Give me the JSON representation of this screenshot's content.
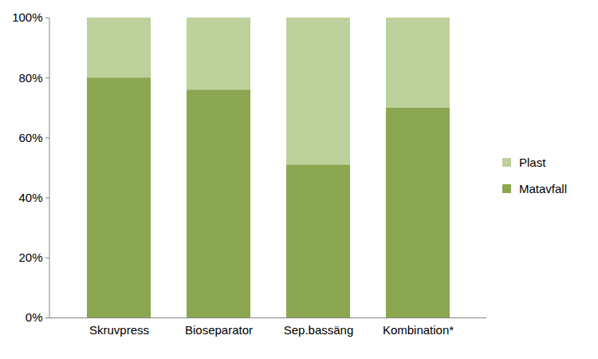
{
  "chart_data": {
    "type": "bar",
    "stacked": true,
    "categories": [
      "Skruvpress",
      "Bioseparator",
      "Sep.bassäng",
      "Kombination*"
    ],
    "series": [
      {
        "name": "Matavfall",
        "color": "#8aa650",
        "values": [
          80,
          76,
          51,
          70
        ]
      },
      {
        "name": "Plast",
        "color": "#bdd19c",
        "values": [
          20,
          24,
          49,
          30
        ]
      }
    ],
    "ylim": [
      0,
      100
    ],
    "yticks": [
      {
        "value": 0,
        "label": "0%"
      },
      {
        "value": 20,
        "label": "20%"
      },
      {
        "value": 40,
        "label": "40%"
      },
      {
        "value": 60,
        "label": "60%"
      },
      {
        "value": 80,
        "label": "80%"
      },
      {
        "value": 100,
        "label": "100%"
      }
    ],
    "grid": false,
    "legend": "right"
  }
}
